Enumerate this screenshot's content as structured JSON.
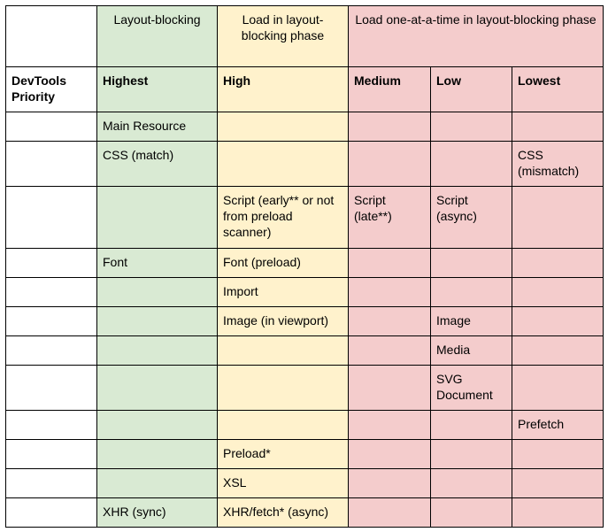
{
  "phases": {
    "first": "",
    "blocking": "Layout-blocking",
    "load_in": "Load in layout-blocking phase",
    "one_at_a_time": "Load one-at-a-time in layout-blocking phase"
  },
  "priorities": {
    "label": "DevTools Priority",
    "highest": "Highest",
    "high": "High",
    "medium": "Medium",
    "low": "Low",
    "lowest": "Lowest"
  },
  "rows": [
    {
      "highest": "Main Resource",
      "high": "",
      "medium": "",
      "low": "",
      "lowest": ""
    },
    {
      "highest": "CSS (match)",
      "high": "",
      "medium": "",
      "low": "",
      "lowest": "CSS (mismatch)"
    },
    {
      "highest": "",
      "high": "Script (early** or not from preload scanner)",
      "medium": "Script (late**)",
      "low": "Script (async)",
      "lowest": ""
    },
    {
      "highest": "Font",
      "high": "Font (preload)",
      "medium": "",
      "low": "",
      "lowest": ""
    },
    {
      "highest": "",
      "high": "Import",
      "medium": "",
      "low": "",
      "lowest": ""
    },
    {
      "highest": "",
      "high": "Image (in viewport)",
      "medium": "",
      "low": "Image",
      "lowest": ""
    },
    {
      "highest": "",
      "high": "",
      "medium": "",
      "low": "Media",
      "lowest": ""
    },
    {
      "highest": "",
      "high": "",
      "medium": "",
      "low": "SVG Document",
      "lowest": ""
    },
    {
      "highest": "",
      "high": "",
      "medium": "",
      "low": "",
      "lowest": "Prefetch"
    },
    {
      "highest": "",
      "high": "Preload*",
      "medium": "",
      "low": "",
      "lowest": ""
    },
    {
      "highest": "",
      "high": "XSL",
      "medium": "",
      "low": "",
      "lowest": ""
    },
    {
      "highest": "XHR (sync)",
      "high": "XHR/fetch* (async)",
      "medium": "",
      "low": "",
      "lowest": ""
    }
  ],
  "colors": {
    "blocking": "#d9ead3",
    "load_in": "#fff2cc",
    "one_at_a_time": "#f4cccc",
    "label_column": "#ffffff",
    "border": "#000000"
  }
}
